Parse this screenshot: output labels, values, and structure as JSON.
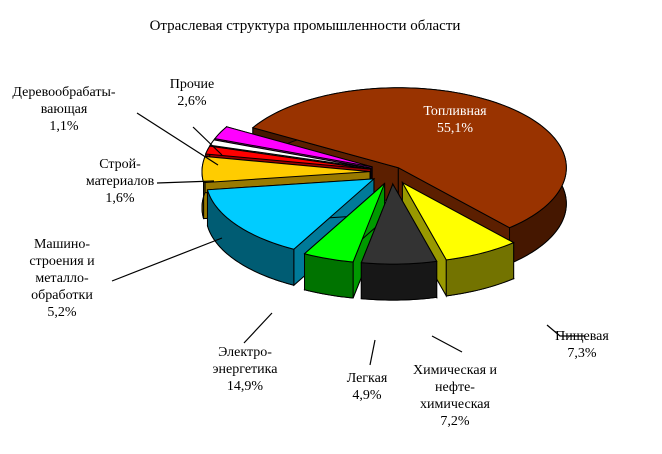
{
  "chart_data": {
    "type": "pie3d",
    "title": "Отраслевая структура промышленности области",
    "categories": [
      "Топливная",
      "Пищевая",
      "Химическая и\nнефте-\nхимическая",
      "Легкая",
      "Электро-\nэнергетика",
      "Машино-\nстроения и\nметалло-\nобработки",
      "Строй-\nматериалов",
      "Деревообрабаты-\nвающая",
      "Прочие"
    ],
    "values": [
      55.1,
      7.3,
      7.2,
      4.9,
      14.9,
      5.2,
      1.6,
      1.1,
      2.6
    ],
    "value_labels": [
      "55,1%",
      "7,3%",
      "7,2%",
      "4,9%",
      "14,9%",
      "5,2%",
      "1,6%",
      "1,1%",
      "2,6%"
    ],
    "colors": [
      "#993300",
      "#ffff00",
      "#333333",
      "#00ff00",
      "#00ccff",
      "#ffcc00",
      "#ff0000",
      "#ffffff",
      "#ff00ff"
    ]
  }
}
